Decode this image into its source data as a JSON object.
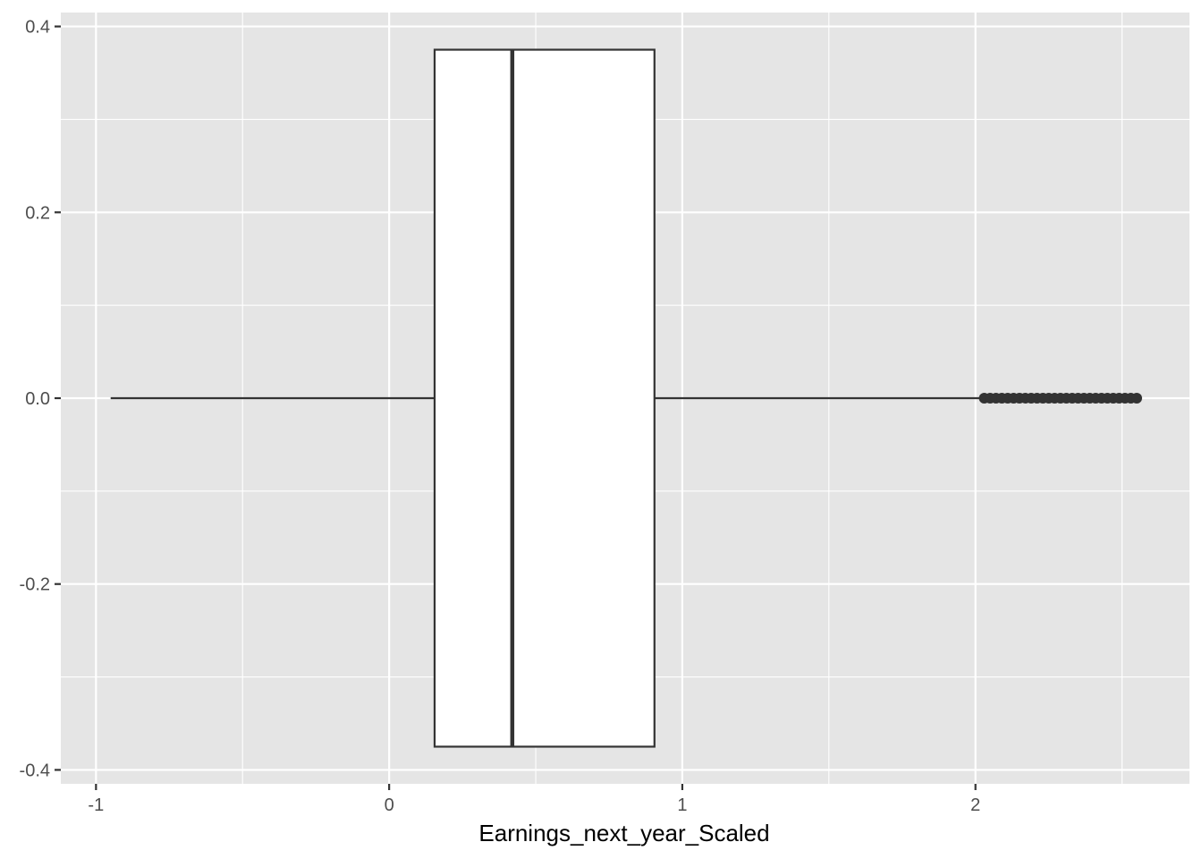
{
  "chart_data": {
    "type": "boxplot",
    "title": "",
    "xlabel": "Earnings_next_year_Scaled",
    "ylabel": "",
    "xlim": [
      -1.12,
      2.73
    ],
    "ylim": [
      -0.415,
      0.415
    ],
    "x_ticks": [
      {
        "value": -1,
        "label": "-1"
      },
      {
        "value": 0,
        "label": "0"
      },
      {
        "value": 1,
        "label": "1"
      },
      {
        "value": 2,
        "label": "2"
      }
    ],
    "y_ticks": [
      {
        "value": 0.4,
        "label": "0.4"
      },
      {
        "value": 0.2,
        "label": "0.2"
      },
      {
        "value": 0.0,
        "label": "0.0"
      },
      {
        "value": -0.2,
        "label": "-0.2"
      },
      {
        "value": -0.4,
        "label": "-0.4"
      }
    ],
    "box": {
      "lower_whisker": -0.95,
      "q1": 0.155,
      "median": 0.42,
      "q3": 0.905,
      "upper_whisker": 2.02,
      "y_center": 0.0,
      "half_width": 0.375
    },
    "outliers": [
      2.03,
      2.05,
      2.07,
      2.09,
      2.11,
      2.13,
      2.15,
      2.17,
      2.19,
      2.21,
      2.23,
      2.25,
      2.27,
      2.29,
      2.31,
      2.33,
      2.35,
      2.37,
      2.39,
      2.41,
      2.43,
      2.45,
      2.47,
      2.49,
      2.51,
      2.53,
      2.55
    ],
    "grid": true,
    "legend": "none",
    "colors": {
      "panel_background": "#e5e5e5",
      "grid": "#ffffff",
      "box_fill": "#ffffff",
      "box_stroke": "#333333",
      "tick_text": "#4d4d4d",
      "axis_title": "#000000"
    }
  }
}
